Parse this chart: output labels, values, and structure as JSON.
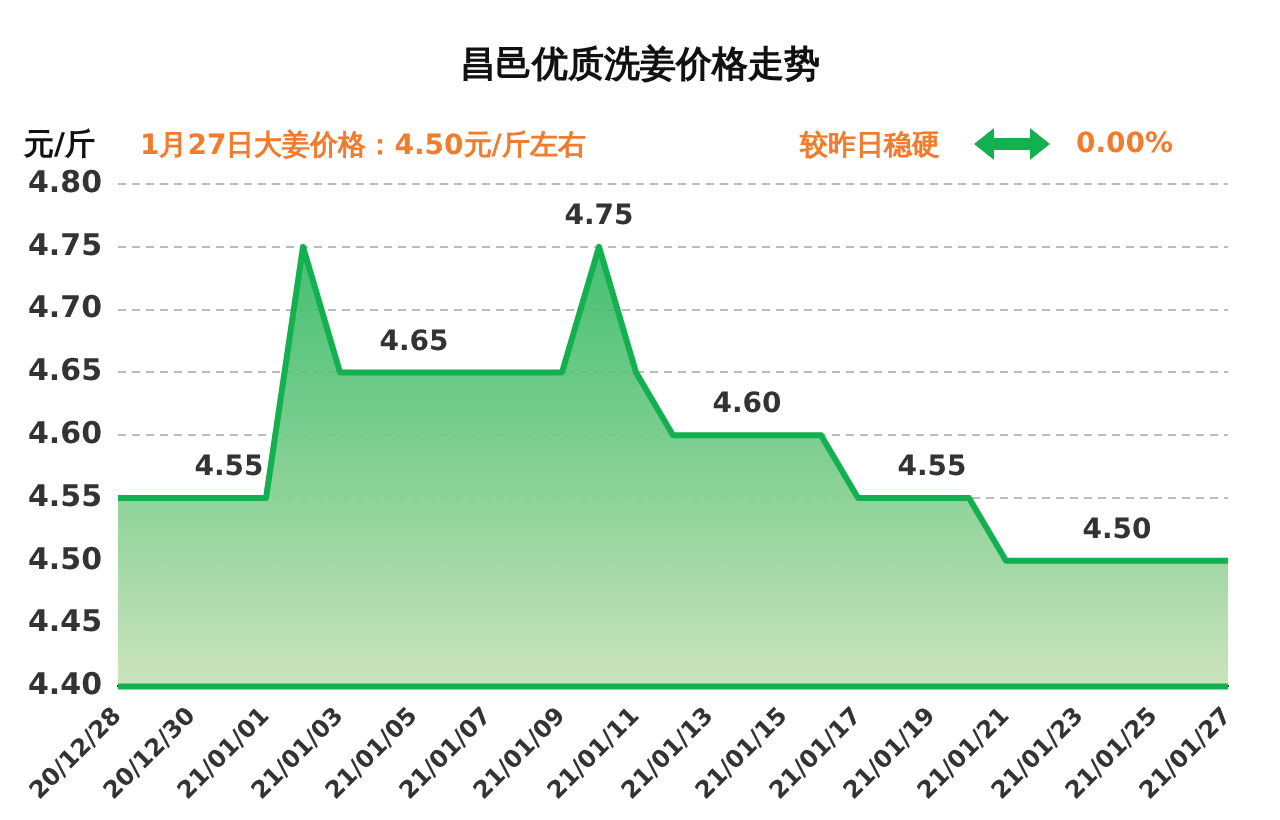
{
  "chart_data": {
    "type": "area",
    "title": "昌邑优质洗姜价格走势",
    "ylabel": "元/斤",
    "annotations": [
      "1月27日大姜价格：4.50元/斤左右",
      "较昨日稳硬",
      "0.00%"
    ],
    "categories": [
      "20/12/28",
      null,
      "20/12/30",
      null,
      "21/01/01",
      null,
      "21/01/03",
      null,
      "21/01/05",
      null,
      "21/01/07",
      null,
      "21/01/09",
      null,
      "21/01/11",
      null,
      "21/01/13",
      null,
      "21/01/15",
      null,
      "21/01/17",
      null,
      "21/01/19",
      null,
      "21/01/21",
      null,
      "21/01/23",
      null,
      "21/01/25",
      null,
      "21/01/27"
    ],
    "series": [
      {
        "color": "#13b04f",
        "values": [
          4.55,
          4.55,
          4.55,
          4.55,
          4.55,
          4.75,
          4.65,
          4.65,
          4.65,
          4.65,
          4.65,
          4.65,
          4.65,
          4.75,
          4.65,
          4.6,
          4.6,
          4.6,
          4.6,
          4.6,
          4.55,
          4.55,
          4.55,
          4.55,
          4.5,
          4.5,
          4.5,
          4.5,
          4.5,
          4.5,
          4.5
        ],
        "value_labels": [
          null,
          null,
          null,
          "4.55",
          null,
          null,
          null,
          null,
          "4.65",
          null,
          null,
          null,
          null,
          "4.75",
          null,
          null,
          null,
          "4.60",
          null,
          null,
          null,
          null,
          "4.55",
          null,
          null,
          null,
          null,
          "4.50",
          null,
          null,
          null
        ]
      }
    ],
    "ylim": [
      4.4,
      4.8
    ],
    "yticks": [
      {
        "value": 4.4,
        "label": "4.40"
      },
      {
        "value": 4.45,
        "label": "4.45"
      },
      {
        "value": 4.5,
        "label": "4.50"
      },
      {
        "value": 4.55,
        "label": "4.55"
      },
      {
        "value": 4.6,
        "label": "4.60"
      },
      {
        "value": 4.65,
        "label": "4.65"
      },
      {
        "value": 4.7,
        "label": "4.70"
      },
      {
        "value": 4.75,
        "label": "4.75"
      },
      {
        "value": 4.8,
        "label": "4.80"
      }
    ],
    "grid": "y",
    "legend": false,
    "marker": "none",
    "line_style": "solid"
  }
}
